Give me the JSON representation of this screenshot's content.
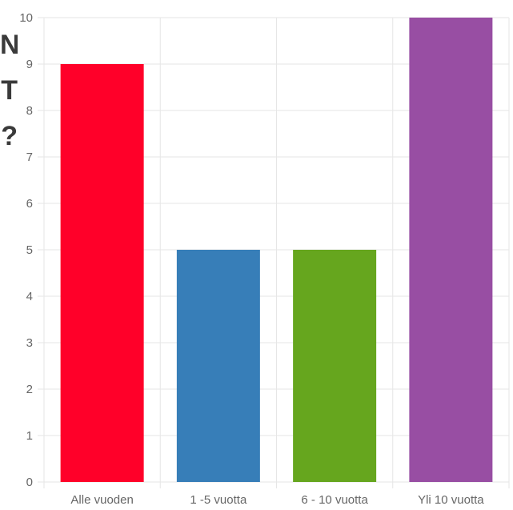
{
  "heading_fragments": [
    "N",
    "T",
    "?"
  ],
  "chart_data": {
    "type": "bar",
    "title": "",
    "xlabel": "",
    "ylabel": "",
    "categories": [
      "Alle vuoden",
      "1 -5 vuotta",
      "6 - 10 vuotta",
      "Yli 10 vuotta"
    ],
    "values": [
      9,
      5,
      5,
      10
    ],
    "colors": [
      "#ff0029",
      "#377eb8",
      "#66a61e",
      "#984ea3"
    ],
    "ylim": [
      0,
      10
    ],
    "yticks": [
      0,
      1,
      2,
      3,
      4,
      5,
      6,
      7,
      8,
      9,
      10
    ],
    "grid": true,
    "legend": "none"
  }
}
